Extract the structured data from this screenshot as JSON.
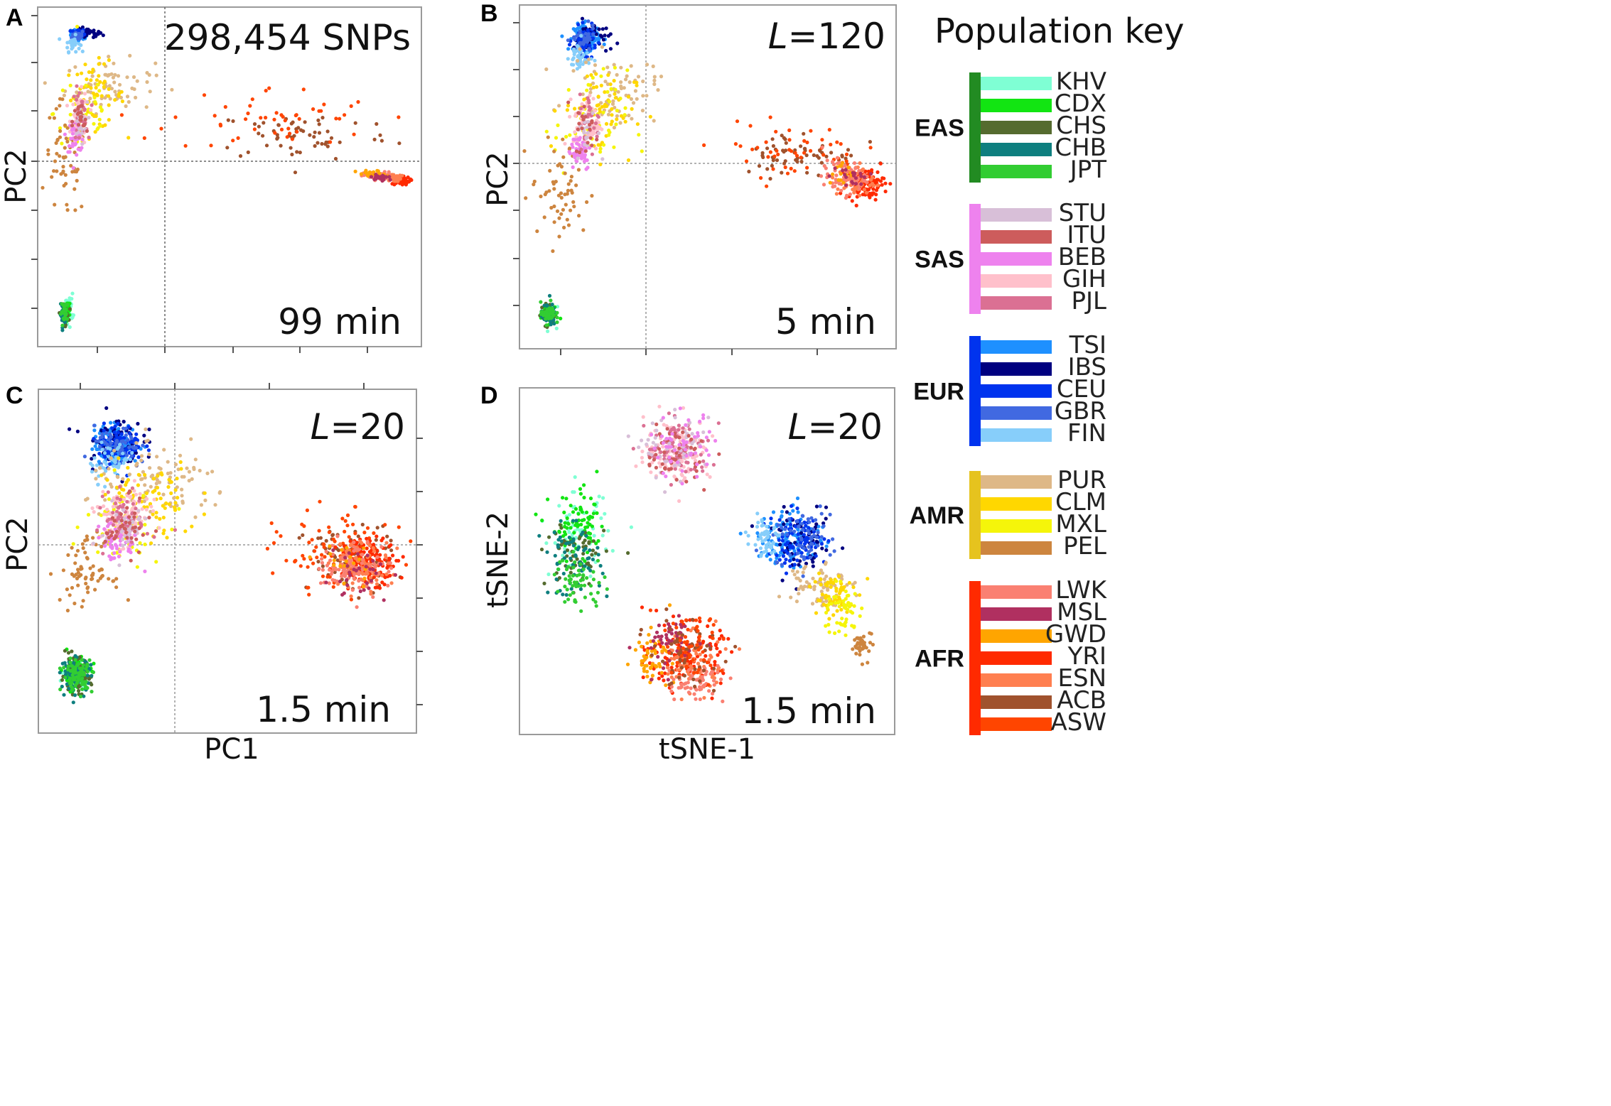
{
  "colors": {
    "KHV": "#7fffd4",
    "CDX": "#12e512",
    "CHS": "#556b2f",
    "CHB": "#0e7f7f",
    "JPT": "#32cd32",
    "STU": "#d8bfd8",
    "ITU": "#cd5c5c",
    "BEB": "#ee82ee",
    "GIH": "#ffc0cb",
    "PJL": "#db7093",
    "TSI": "#1e90ff",
    "IBS": "#000080",
    "CEU": "#0033ee",
    "GBR": "#4169e1",
    "FIN": "#87cefa",
    "PUR": "#deb887",
    "CLM": "#ffd700",
    "MXL": "#f5f50a",
    "PEL": "#cd853f",
    "LWK": "#fa8072",
    "MSL": "#b03060",
    "GWD": "#ffa500",
    "YRI": "#ff2a00",
    "ESN": "#ff7f50",
    "ACB": "#a0522d",
    "ASW": "#ff4500"
  },
  "key": {
    "title": "Population key",
    "groups": [
      {
        "name": "EAS",
        "color": "#228b22",
        "pops": [
          "KHV",
          "CDX",
          "CHS",
          "CHB",
          "JPT"
        ]
      },
      {
        "name": "SAS",
        "color": "#ee82ee",
        "pops": [
          "STU",
          "ITU",
          "BEB",
          "GIH",
          "PJL"
        ]
      },
      {
        "name": "EUR",
        "color": "#0033ee",
        "pops": [
          "TSI",
          "IBS",
          "CEU",
          "GBR",
          "FIN"
        ]
      },
      {
        "name": "AMR",
        "color": "#e6c31e",
        "pops": [
          "PUR",
          "CLM",
          "MXL",
          "PEL"
        ]
      },
      {
        "name": "AFR",
        "color": "#ff2a00",
        "pops": [
          "LWK",
          "MSL",
          "GWD",
          "YRI",
          "ESN",
          "ACB",
          "ASW"
        ]
      }
    ]
  },
  "chart_data": [
    {
      "panel": "A",
      "type": "scatter",
      "annotation": "298,454 SNPs",
      "time": "99 min",
      "xlabel": "",
      "ylabel": "PC2",
      "xlim": [
        0,
        100
      ],
      "ylim": [
        0,
        100
      ],
      "clusters": [
        {
          "pop": "TSI",
          "cx": 10,
          "cy": 94,
          "sx": 1.2,
          "sy": 0.8,
          "n": 60
        },
        {
          "pop": "IBS",
          "cx": 12,
          "cy": 94,
          "sx": 2.0,
          "sy": 0.8,
          "n": 40
        },
        {
          "pop": "CEU",
          "cx": 9.5,
          "cy": 94,
          "sx": 0.9,
          "sy": 0.8,
          "n": 40
        },
        {
          "pop": "GBR",
          "cx": 9.5,
          "cy": 93.5,
          "sx": 0.8,
          "sy": 0.8,
          "n": 30
        },
        {
          "pop": "FIN",
          "cx": 8,
          "cy": 91,
          "sx": 1.0,
          "sy": 1.2,
          "n": 30
        },
        {
          "pop": "PUR",
          "cx": 18,
          "cy": 78,
          "sx": 6,
          "sy": 4,
          "n": 70
        },
        {
          "pop": "CLM",
          "cx": 14,
          "cy": 75,
          "sx": 4,
          "sy": 5,
          "n": 60
        },
        {
          "pop": "MXL",
          "cx": 11,
          "cy": 70,
          "sx": 4,
          "sy": 8,
          "n": 40
        },
        {
          "pop": "PEL",
          "cx": 6,
          "cy": 55,
          "sx": 3,
          "sy": 9,
          "n": 60
        },
        {
          "pop": "GIH",
          "cx": 10,
          "cy": 68,
          "sx": 1.2,
          "sy": 4,
          "n": 60
        },
        {
          "pop": "BEB",
          "cx": 9,
          "cy": 63,
          "sx": 1.3,
          "sy": 2.5,
          "n": 40
        },
        {
          "pop": "PJL",
          "cx": 10,
          "cy": 69,
          "sx": 1.0,
          "sy": 4,
          "n": 30
        },
        {
          "pop": "STU",
          "cx": 10,
          "cy": 67,
          "sx": 1,
          "sy": 3,
          "n": 20
        },
        {
          "pop": "ITU",
          "cx": 10,
          "cy": 67,
          "sx": 1,
          "sy": 3,
          "n": 20
        },
        {
          "pop": "ACB",
          "cx": 70,
          "cy": 63,
          "sx": 12,
          "sy": 4,
          "n": 60
        },
        {
          "pop": "ASW",
          "cx": 62,
          "cy": 68,
          "sx": 14,
          "sy": 5,
          "n": 50
        },
        {
          "pop": "YRI",
          "cx": 96,
          "cy": 49,
          "sx": 1.2,
          "sy": 0.6,
          "n": 60
        },
        {
          "pop": "ESN",
          "cx": 93,
          "cy": 50,
          "sx": 1.5,
          "sy": 0.6,
          "n": 50
        },
        {
          "pop": "LWK",
          "cx": 90,
          "cy": 50.5,
          "sx": 2,
          "sy": 0.6,
          "n": 50
        },
        {
          "pop": "GWD",
          "cx": 88,
          "cy": 51,
          "sx": 2,
          "sy": 0.6,
          "n": 20
        },
        {
          "pop": "MSL",
          "cx": 91,
          "cy": 50,
          "sx": 2,
          "sy": 0.6,
          "n": 20
        },
        {
          "pop": "KHV",
          "cx": 7,
          "cy": 10,
          "sx": 0.6,
          "sy": 2.2,
          "n": 30
        },
        {
          "pop": "CDX",
          "cx": 6.5,
          "cy": 9,
          "sx": 0.5,
          "sy": 1.5,
          "n": 30
        },
        {
          "pop": "CHS",
          "cx": 6,
          "cy": 8,
          "sx": 0.5,
          "sy": 1.5,
          "n": 30
        },
        {
          "pop": "CHB",
          "cx": 5.5,
          "cy": 8,
          "sx": 0.4,
          "sy": 1.5,
          "n": 30
        },
        {
          "pop": "JPT",
          "cx": 6,
          "cy": 9,
          "sx": 0.5,
          "sy": 1.5,
          "n": 30
        }
      ]
    },
    {
      "panel": "B",
      "type": "scatter",
      "annotation": "L=120",
      "time": "5 min",
      "xlabel": "",
      "ylabel": "PC2",
      "xlim": [
        0,
        100
      ],
      "ylim": [
        0,
        100
      ],
      "clusters": [
        {
          "pop": "TSI",
          "cx": 17,
          "cy": 92,
          "sx": 1.8,
          "sy": 2.0,
          "n": 120
        },
        {
          "pop": "IBS",
          "cx": 18.5,
          "cy": 92,
          "sx": 2.5,
          "sy": 2.5,
          "n": 40
        },
        {
          "pop": "CEU",
          "cx": 16.5,
          "cy": 91,
          "sx": 1.6,
          "sy": 2.0,
          "n": 60
        },
        {
          "pop": "GBR",
          "cx": 16,
          "cy": 91,
          "sx": 1.6,
          "sy": 2.0,
          "n": 40
        },
        {
          "pop": "FIN",
          "cx": 15,
          "cy": 86,
          "sx": 1.4,
          "sy": 2.5,
          "n": 40
        },
        {
          "pop": "PUR",
          "cx": 24,
          "cy": 76,
          "sx": 6,
          "sy": 5,
          "n": 80
        },
        {
          "pop": "CLM",
          "cx": 20,
          "cy": 70,
          "sx": 5,
          "sy": 7,
          "n": 70
        },
        {
          "pop": "MXL",
          "cx": 18,
          "cy": 66,
          "sx": 5,
          "sy": 8,
          "n": 50
        },
        {
          "pop": "PEL",
          "cx": 10,
          "cy": 45,
          "sx": 4,
          "sy": 8,
          "n": 60
        },
        {
          "pop": "GIH",
          "cx": 17,
          "cy": 66,
          "sx": 1.8,
          "sy": 4,
          "n": 70
        },
        {
          "pop": "BEB",
          "cx": 15,
          "cy": 58,
          "sx": 1.6,
          "sy": 3,
          "n": 50
        },
        {
          "pop": "PJL",
          "cx": 18,
          "cy": 67,
          "sx": 1.5,
          "sy": 4,
          "n": 30
        },
        {
          "pop": "STU",
          "cx": 17,
          "cy": 64,
          "sx": 1.5,
          "sy": 4,
          "n": 20
        },
        {
          "pop": "ITU",
          "cx": 17,
          "cy": 64,
          "sx": 1.5,
          "sy": 4,
          "n": 20
        },
        {
          "pop": "ACB",
          "cx": 75,
          "cy": 57,
          "sx": 8,
          "sy": 3.5,
          "n": 60
        },
        {
          "pop": "ASW",
          "cx": 72,
          "cy": 58,
          "sx": 10,
          "sy": 4,
          "n": 50
        },
        {
          "pop": "YRI",
          "cx": 93,
          "cy": 48,
          "sx": 2.5,
          "sy": 2.2,
          "n": 100
        },
        {
          "pop": "ESN",
          "cx": 90,
          "cy": 49,
          "sx": 2.5,
          "sy": 2.5,
          "n": 60
        },
        {
          "pop": "LWK",
          "cx": 87,
          "cy": 50,
          "sx": 3,
          "sy": 2.5,
          "n": 60
        },
        {
          "pop": "GWD",
          "cx": 86,
          "cy": 51,
          "sx": 2,
          "sy": 2,
          "n": 15
        },
        {
          "pop": "MSL",
          "cx": 89,
          "cy": 50,
          "sx": 3,
          "sy": 2,
          "n": 20
        },
        {
          "pop": "KHV",
          "cx": 6.5,
          "cy": 9.5,
          "sx": 1.0,
          "sy": 2.0,
          "n": 20
        },
        {
          "pop": "CDX",
          "cx": 6.5,
          "cy": 9,
          "sx": 1.0,
          "sy": 1.6,
          "n": 40
        },
        {
          "pop": "CHS",
          "cx": 6.5,
          "cy": 8.5,
          "sx": 1.0,
          "sy": 1.6,
          "n": 40
        },
        {
          "pop": "CHB",
          "cx": 6.5,
          "cy": 8.5,
          "sx": 1.0,
          "sy": 1.6,
          "n": 40
        },
        {
          "pop": "JPT",
          "cx": 6.5,
          "cy": 9,
          "sx": 1.0,
          "sy": 1.6,
          "n": 40
        }
      ]
    },
    {
      "panel": "C",
      "type": "scatter",
      "annotation": "L=20",
      "time": "1.5 min",
      "xlabel": "PC1",
      "ylabel": "PC2",
      "xlim": [
        0,
        100
      ],
      "ylim": [
        0,
        100
      ],
      "clusters": [
        {
          "pop": "TSI",
          "cx": 20,
          "cy": 85,
          "sx": 3.0,
          "sy": 3.0,
          "n": 180
        },
        {
          "pop": "IBS",
          "cx": 19,
          "cy": 86,
          "sx": 4,
          "sy": 4,
          "n": 60
        },
        {
          "pop": "CEU",
          "cx": 21,
          "cy": 85,
          "sx": 3,
          "sy": 3,
          "n": 90
        },
        {
          "pop": "GBR",
          "cx": 20,
          "cy": 84,
          "sx": 3,
          "sy": 3,
          "n": 60
        },
        {
          "pop": "FIN",
          "cx": 19,
          "cy": 80,
          "sx": 3,
          "sy": 3,
          "n": 50
        },
        {
          "pop": "PUR",
          "cx": 32,
          "cy": 73,
          "sx": 10,
          "sy": 5,
          "n": 100
        },
        {
          "pop": "CLM",
          "cx": 28,
          "cy": 68,
          "sx": 7,
          "sy": 6,
          "n": 80
        },
        {
          "pop": "MXL",
          "cx": 22,
          "cy": 62,
          "sx": 5,
          "sy": 6,
          "n": 60
        },
        {
          "pop": "PEL",
          "cx": 12,
          "cy": 47,
          "sx": 3.5,
          "sy": 5,
          "n": 70
        },
        {
          "pop": "GIH",
          "cx": 22,
          "cy": 63,
          "sx": 3.5,
          "sy": 4,
          "n": 120
        },
        {
          "pop": "BEB",
          "cx": 20,
          "cy": 56,
          "sx": 3,
          "sy": 3,
          "n": 60
        },
        {
          "pop": "PJL",
          "cx": 23,
          "cy": 63,
          "sx": 3,
          "sy": 4,
          "n": 60
        },
        {
          "pop": "STU",
          "cx": 22,
          "cy": 60,
          "sx": 3,
          "sy": 4,
          "n": 40
        },
        {
          "pop": "ITU",
          "cx": 23,
          "cy": 60,
          "sx": 3,
          "sy": 4,
          "n": 40
        },
        {
          "pop": "ACB",
          "cx": 83,
          "cy": 51,
          "sx": 6,
          "sy": 5,
          "n": 90
        },
        {
          "pop": "ASW",
          "cx": 79,
          "cy": 53,
          "sx": 8,
          "sy": 6,
          "n": 80
        },
        {
          "pop": "YRI",
          "cx": 88,
          "cy": 50,
          "sx": 4,
          "sy": 3.5,
          "n": 150
        },
        {
          "pop": "ESN",
          "cx": 86,
          "cy": 49,
          "sx": 4,
          "sy": 3.5,
          "n": 100
        },
        {
          "pop": "LWK",
          "cx": 84,
          "cy": 48,
          "sx": 5,
          "sy": 4,
          "n": 80
        },
        {
          "pop": "GWD",
          "cx": 82,
          "cy": 50,
          "sx": 4,
          "sy": 4,
          "n": 20
        },
        {
          "pop": "MSL",
          "cx": 86,
          "cy": 47,
          "sx": 4,
          "sy": 4,
          "n": 30
        },
        {
          "pop": "KHV",
          "cx": 9,
          "cy": 17,
          "sx": 2.0,
          "sy": 2.5,
          "n": 40
        },
        {
          "pop": "CDX",
          "cx": 9,
          "cy": 16,
          "sx": 2.0,
          "sy": 2.5,
          "n": 80
        },
        {
          "pop": "CHS",
          "cx": 9,
          "cy": 16,
          "sx": 2.0,
          "sy": 2.5,
          "n": 80
        },
        {
          "pop": "CHB",
          "cx": 9,
          "cy": 16,
          "sx": 2.0,
          "sy": 2.5,
          "n": 80
        },
        {
          "pop": "JPT",
          "cx": 9.5,
          "cy": 16,
          "sx": 2.0,
          "sy": 2.5,
          "n": 80
        }
      ]
    },
    {
      "panel": "D",
      "type": "scatter",
      "annotation": "L=20",
      "time": "1.5 min",
      "xlabel": "tSNE-1",
      "ylabel": "tSNE-2",
      "xlim": [
        0,
        100
      ],
      "ylim": [
        0,
        100
      ],
      "clusters": [
        {
          "pop": "GIH",
          "cx": 42,
          "cy": 83,
          "sx": 4.5,
          "sy": 4.5,
          "n": 140
        },
        {
          "pop": "PJL",
          "cx": 42,
          "cy": 83,
          "sx": 4.5,
          "sy": 4.5,
          "n": 80
        },
        {
          "pop": "STU",
          "cx": 42,
          "cy": 83,
          "sx": 4.5,
          "sy": 4.5,
          "n": 50
        },
        {
          "pop": "ITU",
          "cx": 41,
          "cy": 82,
          "sx": 4.5,
          "sy": 4.5,
          "n": 50
        },
        {
          "pop": "BEB",
          "cx": 43,
          "cy": 84,
          "sx": 4.5,
          "sy": 4.5,
          "n": 50
        },
        {
          "pop": "KHV",
          "cx": 15,
          "cy": 58,
          "sx": 4.0,
          "sy": 6,
          "n": 60
        },
        {
          "pop": "CDX",
          "cx": 15,
          "cy": 60,
          "sx": 4.0,
          "sy": 5,
          "n": 80
        },
        {
          "pop": "CHS",
          "cx": 14,
          "cy": 52,
          "sx": 4.0,
          "sy": 5,
          "n": 60
        },
        {
          "pop": "CHB",
          "cx": 13,
          "cy": 50,
          "sx": 4.0,
          "sy": 5,
          "n": 70
        },
        {
          "pop": "JPT",
          "cx": 15,
          "cy": 44,
          "sx": 3.5,
          "sy": 4,
          "n": 60
        },
        {
          "pop": "TSI",
          "cx": 73,
          "cy": 57,
          "sx": 4.5,
          "sy": 4.5,
          "n": 120
        },
        {
          "pop": "IBS",
          "cx": 76,
          "cy": 55,
          "sx": 4.5,
          "sy": 4.5,
          "n": 60
        },
        {
          "pop": "CEU",
          "cx": 75,
          "cy": 56,
          "sx": 4,
          "sy": 4,
          "n": 80
        },
        {
          "pop": "GBR",
          "cx": 76,
          "cy": 57,
          "sx": 4,
          "sy": 4,
          "n": 60
        },
        {
          "pop": "FIN",
          "cx": 66,
          "cy": 57,
          "sx": 2,
          "sy": 3,
          "n": 50
        },
        {
          "pop": "PUR",
          "cx": 80,
          "cy": 44,
          "sx": 4,
          "sy": 3.5,
          "n": 70
        },
        {
          "pop": "CLM",
          "cx": 84,
          "cy": 40,
          "sx": 3,
          "sy": 4,
          "n": 60
        },
        {
          "pop": "MXL",
          "cx": 87,
          "cy": 35,
          "sx": 2.5,
          "sy": 4,
          "n": 50
        },
        {
          "pop": "PEL",
          "cx": 93,
          "cy": 25,
          "sx": 1.5,
          "sy": 2,
          "n": 40
        },
        {
          "pop": "YRI",
          "cx": 44,
          "cy": 22,
          "sx": 5,
          "sy": 4.5,
          "n": 140
        },
        {
          "pop": "ESN",
          "cx": 45,
          "cy": 20,
          "sx": 5,
          "sy": 4.5,
          "n": 80
        },
        {
          "pop": "LWK",
          "cx": 47,
          "cy": 14,
          "sx": 4,
          "sy": 3,
          "n": 60
        },
        {
          "pop": "GWD",
          "cx": 35,
          "cy": 22,
          "sx": 2.5,
          "sy": 3.5,
          "n": 50
        },
        {
          "pop": "MSL",
          "cx": 40,
          "cy": 26,
          "sx": 4,
          "sy": 4,
          "n": 50
        },
        {
          "pop": "ACB",
          "cx": 44,
          "cy": 23,
          "sx": 5,
          "sy": 5,
          "n": 60
        },
        {
          "pop": "ASW",
          "cx": 45,
          "cy": 24,
          "sx": 5,
          "sy": 5,
          "n": 50
        }
      ]
    }
  ]
}
